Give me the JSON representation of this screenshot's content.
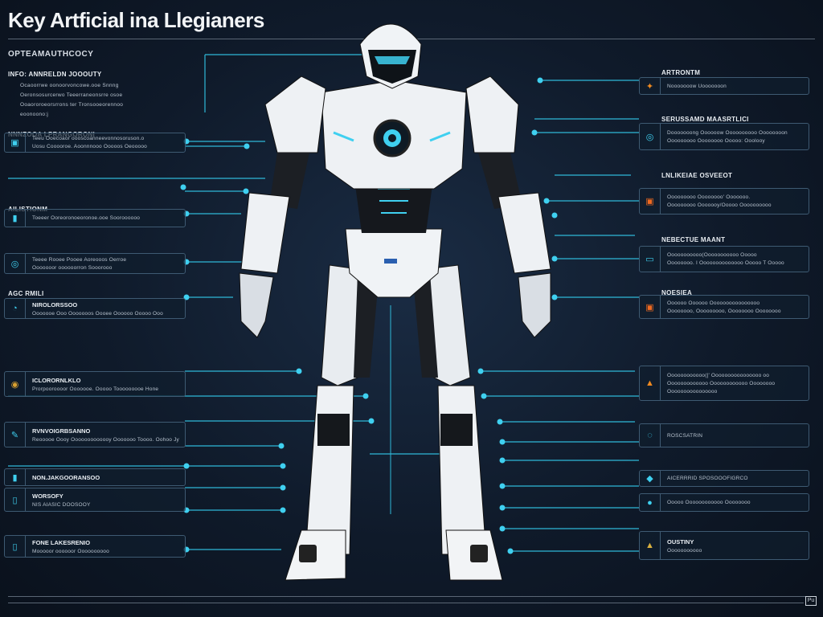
{
  "title": "Key Artficial ina Llegianers",
  "subtitle": "OPTEAMAUTHCOCY",
  "accent": "#3fd0f0",
  "left": [
    {
      "title": "INFO: ANNRELDN JOOOUTY",
      "lines": [
        "Ocaoorrwe oonoorvoncowe.ooe Snnng",
        "Oeronsosurcerwo Teeerraneonsrre osoe",
        "Ooaororoeorsrrons ter Tronsooeorennoo",
        "eoonoono:j"
      ],
      "icon": ""
    },
    {
      "title": "NNNZOOA LPRANGORONI",
      "lines": [
        "Teeu Ooecoaor oooscoanneevonnosoruson.o",
        "Uosu Cooooroe. Aoonnnooo Ooooos Oeooooo"
      ],
      "icon": "chip-icon"
    },
    {
      "title": "AILISTIONM",
      "lines": [
        "Toeeer Ooreoronoeoronoe.ooe Sooroooooo"
      ],
      "icon": "battery-icon"
    },
    {
      "title": "",
      "lines": [
        "Teeee Rooee Pooee Aoreooos Oerroe",
        "Ooooooor oooooorron Sooorooo"
      ],
      "icon": "circuit-icon"
    },
    {
      "title": "AGC RMILI",
      "subtitle": "NIROLORSSOO",
      "lines": [
        "Ooooooe Ooo Ooooooos Oooee Oooooo Ooooo Ooo"
      ],
      "icon": "gauge-icon"
    },
    {
      "title": "ICLORORNLKLO",
      "lines": [
        "Prorpooroooor Ooooooe. Ooooo Tooooooooe Hone"
      ],
      "icon": "sensor-icon"
    },
    {
      "title": "RVNVOIGRBSANNO",
      "lines": [
        "Reooooe Oooy Ooooooooooooy Ooooooo Toooo. Oohoo Jy"
      ],
      "icon": "arm-icon"
    },
    {
      "title": "NON.JAKGOORANSOO",
      "lines": [],
      "icon": "cell-icon"
    },
    {
      "title": "WORSOFY",
      "lines": [
        "NIS AIASIC DOOSOOY"
      ],
      "icon": "phone-icon"
    },
    {
      "title": "FONE LAKESRENIO",
      "lines": [
        "Mooooor oooooor Oooooooooo"
      ],
      "icon": "foot-icon"
    }
  ],
  "right": [
    {
      "title": "ARTRONTM",
      "lines": [
        "Nooooooow Uooooooon"
      ],
      "icon": "spark-icon"
    },
    {
      "title": "SERUSSAMD MAASRTLICI",
      "lines": [
        "Dooooooong Oooooow Oooooooooo Oooooooon",
        "Ooooooooo Oooooooo Ooooo: Ooolooy"
      ],
      "icon": "ai-icon"
    },
    {
      "title": "LNLIKEIAE OSVEEOT",
      "lines": [
        "Ooooooooo Oooooooo' Ooooooo.",
        "Ooooooooo Ooooooy/Ooooo Oooooooooo"
      ],
      "icon": "processor-icon"
    },
    {
      "title": "NEBECTUE MAANT",
      "lines": [
        "Ooooooooooo(Ooooooooooo Ooooo",
        "Oooooooo. I Oooooooooooooo Ooooo T Ooooo"
      ],
      "icon": "memory-icon"
    },
    {
      "title": "NOESIEA",
      "lines": [
        "Oooooo Oooooo Oooooooooooooooo",
        "Oooooooo, Ooooooooo, Oooooooo Oooooooo"
      ],
      "icon": "power-icon"
    },
    {
      "title": "",
      "lines": [
        "Oooooooooooo(|' Oooooooooooooooo oo",
        "Ooooooooooooo Oooooooooooo Oooooooo",
        "Oooooooooooooooo"
      ],
      "icon": "warning-icon"
    },
    {
      "title": "",
      "lines": [
        "ROSCSATRIN"
      ],
      "icon": "target-icon"
    },
    {
      "title": "",
      "lines": [
        "AICERRRID SPOSOOOFIGRCO"
      ],
      "icon": "drop-icon"
    },
    {
      "title": "",
      "lines": [
        "Ooooo Oooooooooooo Oooooooo"
      ],
      "icon": "lens-icon"
    },
    {
      "title": "OUSTINY",
      "lines": [
        "Ooooooooooo"
      ],
      "icon": "flame-icon"
    }
  ],
  "corner": "Pu"
}
